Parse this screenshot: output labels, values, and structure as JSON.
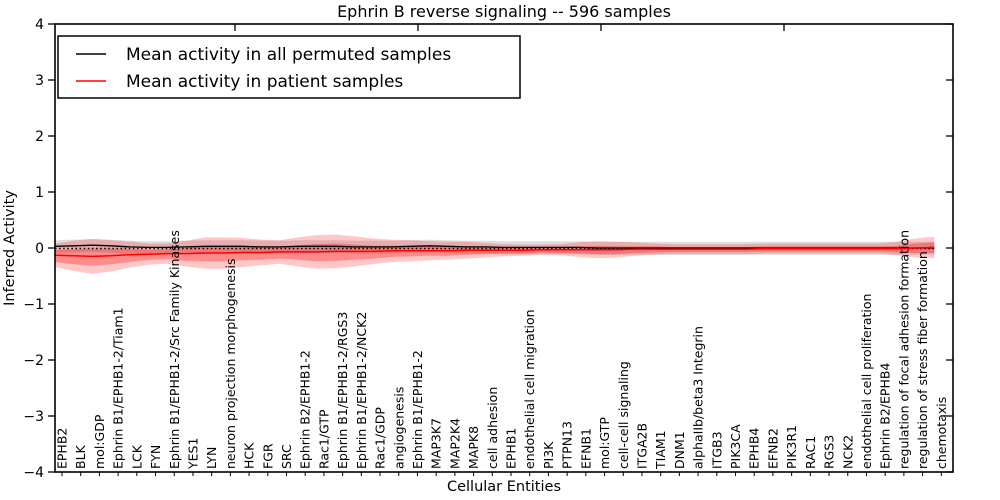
{
  "figure": {
    "title": "Ephrin B reverse signaling -- 596 samples",
    "xlabel": "Cellular Entities",
    "ylabel": "Inferred Activity",
    "background": "#ffffff",
    "frame_color": "#000000"
  },
  "legend": {
    "items": [
      {
        "label": "Mean activity in all permuted samples",
        "color": "#000000"
      },
      {
        "label": "Mean activity in patient samples",
        "color": "#ff0000"
      }
    ]
  },
  "chart_data": {
    "type": "line",
    "title": "Ephrin B reverse signaling -- 596 samples",
    "xlabel": "Cellular Entities",
    "ylabel": "Inferred Activity",
    "ylim": [
      -4,
      4
    ],
    "grid": false,
    "legend_position": "upper left",
    "zero_line": {
      "value": 0,
      "style": "dotted",
      "color": "#000000"
    },
    "ytick_values": [
      -4,
      -3,
      -2,
      -1,
      0,
      1,
      2,
      3,
      4
    ],
    "yticks": [
      "−4",
      "−3",
      "−2",
      "−1",
      "0",
      "1",
      "2",
      "3",
      "4"
    ],
    "categories": [
      "EPHB2",
      "BLK",
      "mol:GDP",
      "Ephrin B1/EPHB1-2/Tiam1",
      "LCK",
      "FYN",
      "Ephrin B1/EPHB1-2/Src Family Kinases",
      "YES1",
      "LYN",
      "neuron projection morphogenesis",
      "HCK",
      "FGR",
      "SRC",
      "Ephrin B2/EPHB1-2",
      "Rac1/GTP",
      "Ephrin B1/EPHB1-2/RGS3",
      "Ephrin B1/EPHB1-2/NCK2",
      "Rac1/GDP",
      "angiogenesis",
      "Ephrin B1/EPHB1-2",
      "MAP3K7",
      "MAP2K4",
      "MAPK8",
      "cell adhesion",
      "EPHB1",
      "endothelial cell migration",
      "PI3K",
      "PTPN13",
      "EFNB1",
      "mol:GTP",
      "cell-cell signaling",
      "ITGA2B",
      "TIAM1",
      "DNM1",
      "alphaIIb/beta3 Integrin",
      "ITGB3",
      "PIK3CA",
      "EPHB4",
      "EFNB2",
      "PIK3R1",
      "RAC1",
      "RGS3",
      "NCK2",
      "endothelial cell proliferation",
      "Ephrin B2/EPHB4",
      "regulation of focal adhesion formation",
      "regulation of stress fiber formation",
      "chemotaxis"
    ],
    "series": [
      {
        "name": "Mean activity in all permuted samples",
        "color": "#000000",
        "values": [
          0.03,
          0.04,
          0.05,
          0.04,
          0.02,
          0.01,
          0.01,
          0.02,
          0.03,
          0.03,
          0.03,
          0.02,
          0.02,
          0.03,
          0.03,
          0.03,
          0.02,
          0.02,
          0.02,
          0.03,
          0.04,
          0.03,
          0.02,
          0.02,
          0.01,
          0.01,
          0.01,
          0.01,
          0.01,
          0.0,
          0.0,
          0.0,
          0.0,
          0.0,
          0.0,
          0.0,
          0.0,
          0.0,
          0.0,
          0.0,
          0.0,
          0.0,
          0.0,
          0.0,
          0.0,
          0.0,
          0.0,
          0.0
        ]
      },
      {
        "name": "Mean activity in patient samples",
        "color": "#ff0000",
        "values": [
          -0.13,
          -0.14,
          -0.15,
          -0.14,
          -0.12,
          -0.11,
          -0.1,
          -0.1,
          -0.09,
          -0.09,
          -0.08,
          -0.08,
          -0.07,
          -0.07,
          -0.07,
          -0.06,
          -0.06,
          -0.06,
          -0.05,
          -0.05,
          -0.05,
          -0.05,
          -0.04,
          -0.04,
          -0.04,
          -0.04,
          -0.03,
          -0.03,
          -0.03,
          -0.03,
          -0.03,
          -0.02,
          -0.02,
          -0.02,
          -0.02,
          -0.02,
          -0.02,
          -0.02,
          -0.01,
          -0.01,
          -0.01,
          -0.01,
          -0.01,
          -0.01,
          -0.01,
          -0.01,
          0.0,
          0.01
        ]
      }
    ],
    "bands": [
      {
        "name": "permuted-std-band",
        "color": "rgba(0,0,0,0.13)",
        "upper": [
          0.14,
          0.15,
          0.16,
          0.15,
          0.13,
          0.12,
          0.12,
          0.13,
          0.14,
          0.14,
          0.14,
          0.13,
          0.13,
          0.14,
          0.14,
          0.14,
          0.13,
          0.13,
          0.13,
          0.14,
          0.15,
          0.14,
          0.13,
          0.13,
          0.12,
          0.12,
          0.12,
          0.12,
          0.12,
          0.11,
          0.11,
          0.11,
          0.11,
          0.11,
          0.11,
          0.11,
          0.11,
          0.11,
          0.11,
          0.11,
          0.11,
          0.11,
          0.11,
          0.11,
          0.11,
          0.11,
          0.11,
          0.11
        ],
        "lower": [
          -0.09,
          -0.08,
          -0.07,
          -0.08,
          -0.1,
          -0.11,
          -0.11,
          -0.1,
          -0.09,
          -0.09,
          -0.09,
          -0.1,
          -0.1,
          -0.09,
          -0.09,
          -0.09,
          -0.1,
          -0.1,
          -0.1,
          -0.09,
          -0.08,
          -0.09,
          -0.1,
          -0.1,
          -0.11,
          -0.11,
          -0.11,
          -0.11,
          -0.11,
          -0.12,
          -0.12,
          -0.12,
          -0.12,
          -0.12,
          -0.12,
          -0.12,
          -0.12,
          -0.12,
          -0.12,
          -0.12,
          -0.12,
          -0.12,
          -0.12,
          -0.12,
          -0.12,
          -0.12,
          -0.12,
          -0.12
        ]
      },
      {
        "name": "patient-std-band-outer",
        "color": "rgba(255,0,0,0.22)",
        "upper": [
          0.08,
          0.13,
          0.16,
          0.14,
          0.11,
          0.08,
          0.08,
          0.13,
          0.19,
          0.19,
          0.18,
          0.15,
          0.14,
          0.19,
          0.23,
          0.24,
          0.21,
          0.17,
          0.15,
          0.14,
          0.12,
          0.11,
          0.11,
          0.09,
          0.07,
          0.06,
          0.06,
          0.07,
          0.1,
          0.12,
          0.11,
          0.1,
          0.08,
          0.07,
          0.07,
          0.07,
          0.07,
          0.07,
          0.08,
          0.08,
          0.08,
          0.08,
          0.08,
          0.08,
          0.08,
          0.11,
          0.17,
          0.2
        ],
        "lower": [
          -0.34,
          -0.41,
          -0.46,
          -0.42,
          -0.35,
          -0.3,
          -0.28,
          -0.33,
          -0.37,
          -0.37,
          -0.34,
          -0.31,
          -0.28,
          -0.33,
          -0.37,
          -0.36,
          -0.33,
          -0.29,
          -0.25,
          -0.24,
          -0.22,
          -0.21,
          -0.19,
          -0.17,
          -0.15,
          -0.14,
          -0.12,
          -0.13,
          -0.16,
          -0.18,
          -0.17,
          -0.14,
          -0.12,
          -0.11,
          -0.11,
          -0.11,
          -0.11,
          -0.11,
          -0.1,
          -0.1,
          -0.1,
          -0.1,
          -0.1,
          -0.1,
          -0.1,
          -0.13,
          -0.17,
          -0.18
        ]
      },
      {
        "name": "patient-std-band-inner",
        "color": "rgba(255,0,0,0.30)",
        "upper": [
          -0.04,
          -0.02,
          -0.01,
          -0.01,
          -0.02,
          -0.03,
          -0.02,
          0.0,
          0.04,
          0.04,
          0.04,
          0.02,
          0.02,
          0.05,
          0.07,
          0.08,
          0.06,
          0.04,
          0.04,
          0.04,
          0.03,
          0.02,
          0.03,
          0.02,
          0.01,
          0.0,
          0.01,
          0.02,
          0.03,
          0.04,
          0.03,
          0.03,
          0.03,
          0.02,
          0.02,
          0.02,
          0.02,
          0.02,
          0.03,
          0.03,
          0.03,
          0.03,
          0.03,
          0.03,
          0.03,
          0.04,
          0.08,
          0.1
        ],
        "lower": [
          -0.25,
          -0.29,
          -0.32,
          -0.29,
          -0.25,
          -0.21,
          -0.2,
          -0.23,
          -0.24,
          -0.24,
          -0.22,
          -0.21,
          -0.19,
          -0.21,
          -0.24,
          -0.23,
          -0.21,
          -0.19,
          -0.16,
          -0.15,
          -0.14,
          -0.14,
          -0.12,
          -0.11,
          -0.1,
          -0.1,
          -0.08,
          -0.09,
          -0.1,
          -0.11,
          -0.11,
          -0.09,
          -0.08,
          -0.07,
          -0.07,
          -0.07,
          -0.07,
          -0.07,
          -0.06,
          -0.06,
          -0.06,
          -0.06,
          -0.06,
          -0.06,
          -0.06,
          -0.08,
          -0.09,
          -0.09
        ]
      }
    ]
  }
}
